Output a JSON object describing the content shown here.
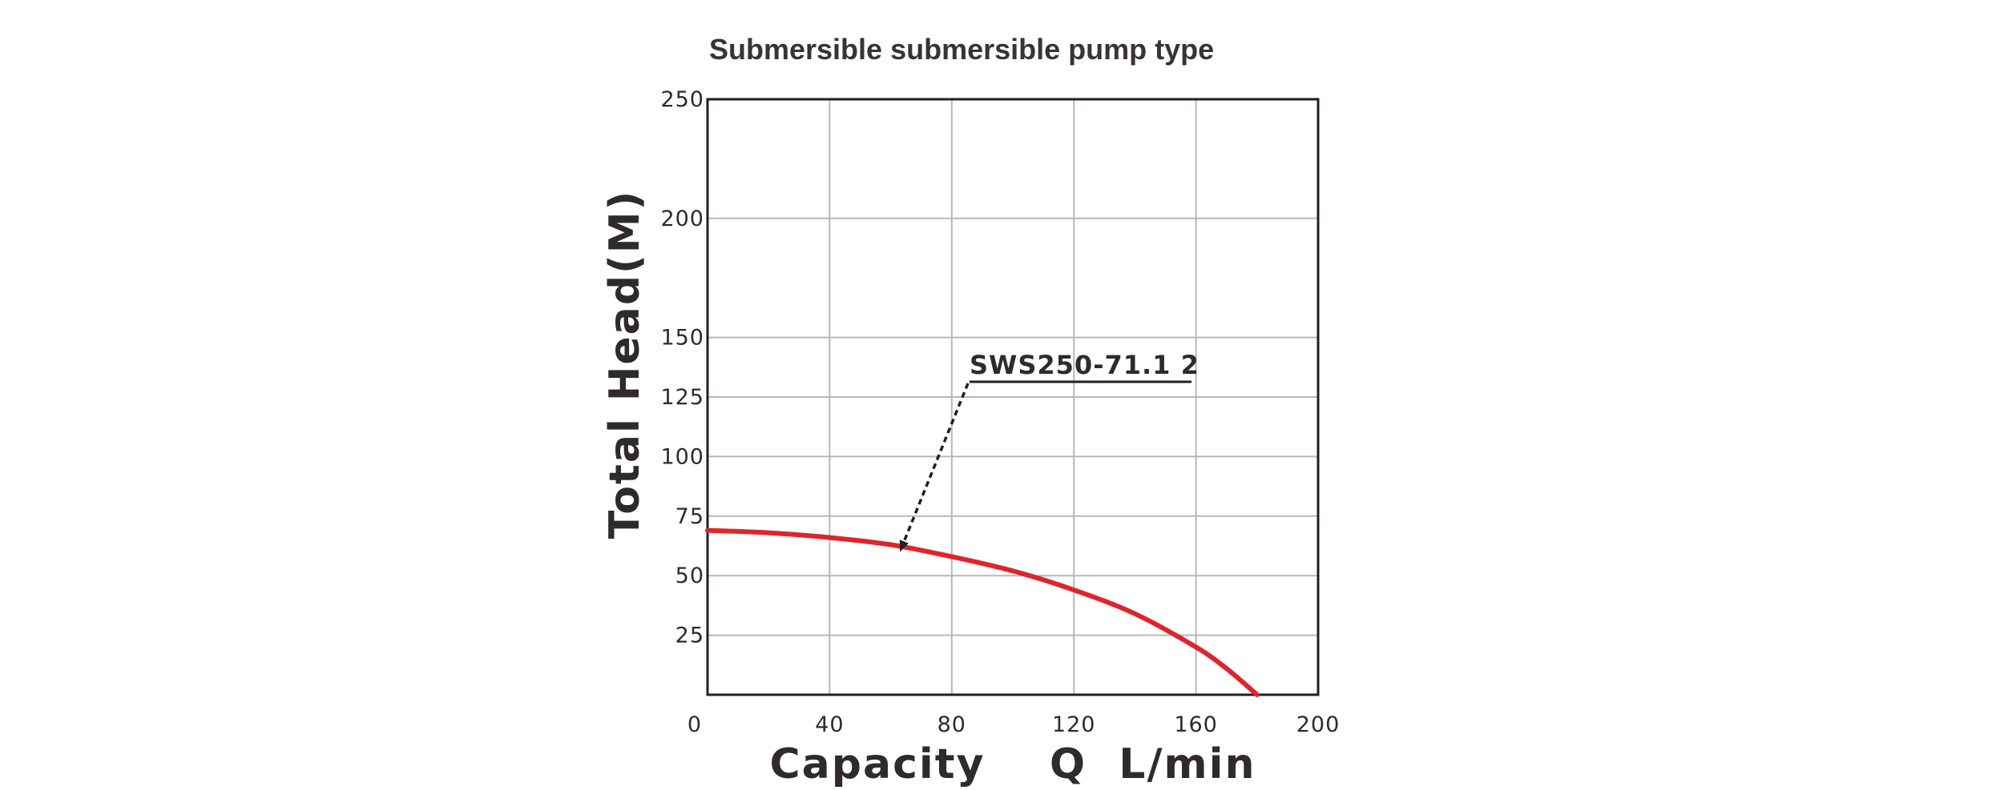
{
  "chart_data": {
    "type": "line",
    "title": "Submersible submersible pump type",
    "xlabel": "Capacity    Q  L/min",
    "ylabel": "Total  Head(M)",
    "xlim": [
      0,
      200
    ],
    "ylim": [
      0,
      250
    ],
    "x_ticks": [
      "0",
      "40",
      "80",
      "120",
      "160",
      "200"
    ],
    "y_ticks": [
      "25",
      "50",
      "75",
      "100",
      "125",
      "150",
      "200",
      "250"
    ],
    "grid": true,
    "series": [
      {
        "name": "SWS250-71.1  2",
        "color": "#e0242b",
        "x": [
          0,
          20,
          40,
          60,
          80,
          100,
          120,
          140,
          160,
          170,
          180
        ],
        "y": [
          69,
          68,
          66,
          63,
          58,
          52,
          44,
          34,
          20,
          11,
          0
        ]
      }
    ],
    "annotation": {
      "text": "SWS250-71.1  2",
      "points_to": {
        "x": 63,
        "y": 60
      }
    }
  }
}
